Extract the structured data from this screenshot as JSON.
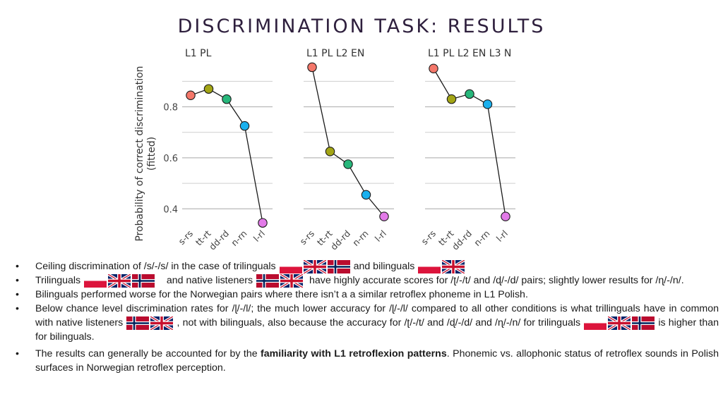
{
  "title": "DISCRIMINATION TASK: RESULTS",
  "chart_data": {
    "type": "line",
    "ylabel": "Probability of correct discrimination\n(fitted)",
    "ylim": [
      0.34,
      0.97
    ],
    "yticks": [
      0.4,
      0.6,
      0.8
    ],
    "categories": [
      "s-rs",
      "tt-rt",
      "dd-rd",
      "n-rn",
      "l-rl"
    ],
    "point_colors": [
      "#f4776a",
      "#a3a515",
      "#27b77b",
      "#1ab0ee",
      "#e27ae8"
    ],
    "grid": true,
    "panels": [
      {
        "title": "L1 PL",
        "values": [
          0.845,
          0.87,
          0.83,
          0.725,
          0.345
        ]
      },
      {
        "title": "L1 PL L2 EN",
        "values": [
          0.955,
          0.625,
          0.575,
          0.455,
          0.37
        ]
      },
      {
        "title": "L1 PL L2 EN L3 N",
        "values": [
          0.95,
          0.83,
          0.85,
          0.81,
          0.37
        ]
      }
    ]
  },
  "bullets": {
    "b1_a": "Ceiling discrimination of /s/-/s/ in the case of trilinguals",
    "b1_b": "and bilinguals",
    "b2_a": "Trilinguals",
    "b2_b": "and native listeners",
    "b2_c": "have  highly accurate scores for /ʈ/-/t/ and /ɖ/-/d/ pairs; slightly lower results for /ɳ/-/n/.",
    "b3": "Bilinguals performed worse for the Norwegian pairs where there isn’t a a similar retroflex phoneme in L1 Polish.",
    "b4_a": "Below chance level discrimination rates for /ɭ/-/l/; the much lower accuracy for /ɭ/-/l/ compared to all other conditions is what trillinguals have in common with native listeners",
    "b4_b": ", not with bilinguals, also because the accuracy for /ʈ/-/t/ and /ɖ/-/d/ and /ɳ/-/n/ for trilinguals",
    "b4_c": "is higher than for bilinguals.",
    "b5_a": "The results can generally be accounted for by the",
    "b5_bold": "familiarity with L1 retroflexion patterns",
    "b5_c": ". Phonemic vs. allophonic status of retroflex sounds in Polish surfaces in Norwegian retroflex perception."
  },
  "flags": {
    "poland": {
      "top": "#ffffff",
      "bottom": "#dc143c"
    },
    "uk": {
      "field": "#012169",
      "cross": "#c8102e",
      "white": "#ffffff"
    },
    "norway": {
      "field": "#ba0c2f",
      "cross": "#00205b",
      "white": "#ffffff"
    }
  }
}
